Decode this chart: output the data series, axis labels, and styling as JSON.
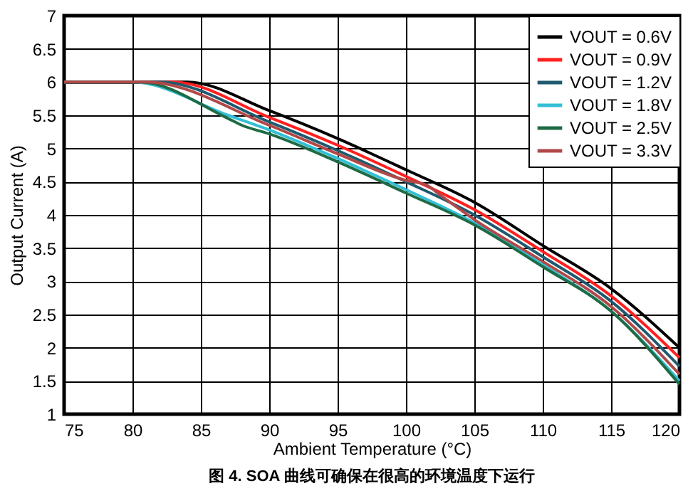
{
  "chart_data": {
    "type": "line",
    "title": "图 4. SOA 曲线可确保在很高的环境温度下运行",
    "xlabel": "Ambient Temperature (°C)",
    "ylabel": "Output Current (A)",
    "xlim": [
      75,
      120
    ],
    "xticks": [
      75,
      80,
      85,
      90,
      95,
      100,
      105,
      110,
      115,
      120
    ],
    "ylim": [
      1,
      7
    ],
    "yticks": [
      1,
      1.5,
      2,
      2.5,
      3,
      3.5,
      4,
      4.5,
      5,
      5.5,
      6,
      6.5,
      7
    ],
    "grid": true,
    "legend": "top right",
    "line_style": "solid",
    "marker": "none",
    "series": [
      {
        "name": "VOUT = 0.6V",
        "color": "#000000",
        "x": [
          75,
          84,
          90,
          95,
          100,
          105,
          110,
          115,
          120
        ],
        "values": [
          6,
          6,
          5.57,
          5.15,
          4.68,
          4.19,
          3.54,
          2.89,
          2.0
        ]
      },
      {
        "name": "VOUT = 0.9V",
        "color": "#ff2020",
        "x": [
          75,
          83,
          90,
          95,
          100,
          105,
          110,
          115,
          120
        ],
        "values": [
          6,
          6,
          5.47,
          5.05,
          4.58,
          4.08,
          3.45,
          2.78,
          1.85
        ]
      },
      {
        "name": "VOUT = 1.2V",
        "color": "#1f5a6e",
        "x": [
          75,
          82,
          90,
          95,
          100,
          105,
          110,
          115,
          120
        ],
        "values": [
          6,
          6,
          5.4,
          4.97,
          4.5,
          4.0,
          3.37,
          2.7,
          1.72
        ]
      },
      {
        "name": "VOUT = 1.8V",
        "color": "#33bfd6",
        "x": [
          75,
          80,
          87,
          90,
          95,
          100,
          105,
          110,
          115,
          120
        ],
        "values": [
          6,
          6,
          5.5,
          5.28,
          4.85,
          4.38,
          3.88,
          3.25,
          2.55,
          1.5
        ]
      },
      {
        "name": "VOUT = 2.5V",
        "color": "#1e6b45",
        "x": [
          75,
          80.5,
          87,
          88,
          90,
          95,
          100,
          105,
          110,
          115,
          120
        ],
        "values": [
          6,
          6,
          5.45,
          5.35,
          5.22,
          4.8,
          4.33,
          3.85,
          3.22,
          2.55,
          1.45
        ]
      },
      {
        "name": "VOUT = 3.3V",
        "color": "#b04848",
        "x": [
          75,
          81,
          90,
          95,
          100,
          101.5,
          102.5,
          105,
          110,
          115,
          120
        ],
        "values": [
          6,
          6,
          5.35,
          4.92,
          4.52,
          4.45,
          4.3,
          3.93,
          3.3,
          2.62,
          1.6
        ]
      }
    ]
  }
}
